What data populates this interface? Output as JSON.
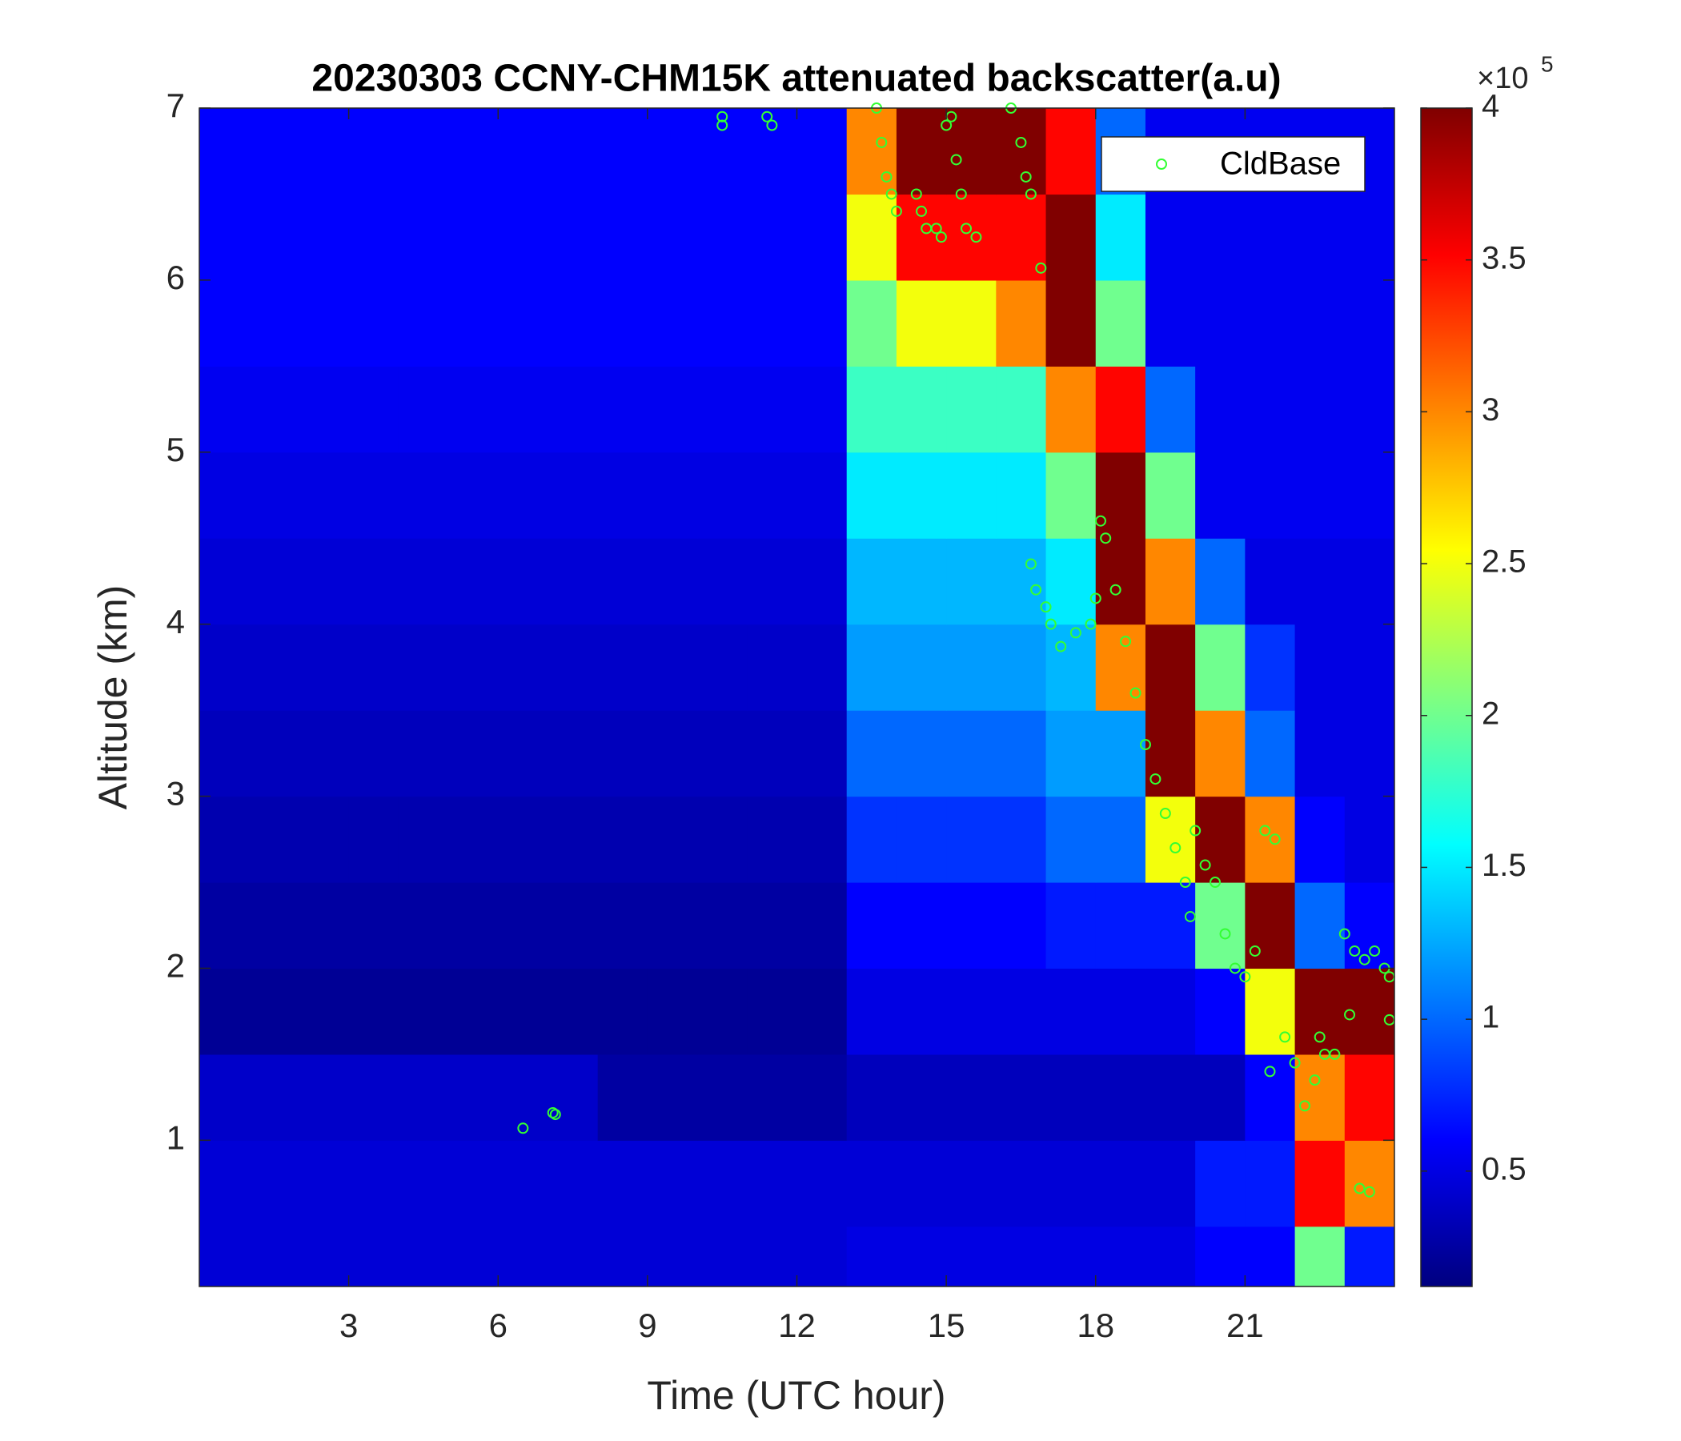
{
  "chart_data": {
    "type": "heatmap",
    "title": "20230303 CCNY-CHM15K attenuated backscatter(a.u)",
    "x_label": "Time (UTC hour)",
    "y_label": "Altitude (km)",
    "xlim": [
      0,
      24
    ],
    "ylim": [
      0.15,
      7
    ],
    "xticks": [
      3,
      6,
      9,
      12,
      15,
      18,
      21
    ],
    "yticks": [
      1,
      2,
      3,
      4,
      5,
      6,
      7
    ],
    "colormap": "jet",
    "clim": [
      0.12,
      4
    ],
    "cticks": [
      0.5,
      1,
      1.5,
      2,
      2.5,
      3,
      3.5,
      4
    ],
    "colorbar_multiplier": {
      "base": "×10",
      "exponent": "5"
    },
    "x_edges": [
      0,
      1,
      2,
      3,
      4,
      5,
      6,
      7,
      8,
      9,
      10,
      11,
      12,
      13,
      14,
      15,
      16,
      17,
      18,
      19,
      20,
      21,
      22,
      23,
      24
    ],
    "y_edges": [
      0.15,
      0.5,
      1,
      1.5,
      2,
      2.5,
      3,
      3.5,
      4,
      4.5,
      5,
      5.5,
      6,
      6.5,
      7
    ],
    "z": [
      [
        0.45,
        0.45,
        0.45,
        0.45,
        0.45,
        0.45,
        0.45,
        0.45,
        0.45,
        0.45,
        0.45,
        0.45,
        0.45,
        0.5,
        0.5,
        0.5,
        0.5,
        0.5,
        0.5,
        0.5,
        0.6,
        0.6,
        2.0,
        0.7
      ],
      [
        0.45,
        0.45,
        0.45,
        0.45,
        0.45,
        0.45,
        0.45,
        0.45,
        0.45,
        0.45,
        0.45,
        0.45,
        0.45,
        0.45,
        0.45,
        0.45,
        0.45,
        0.45,
        0.45,
        0.45,
        0.7,
        0.7,
        3.5,
        3.0
      ],
      [
        0.4,
        0.4,
        0.4,
        0.4,
        0.4,
        0.4,
        0.4,
        0.4,
        0.25,
        0.25,
        0.25,
        0.25,
        0.25,
        0.35,
        0.35,
        0.35,
        0.35,
        0.35,
        0.35,
        0.35,
        0.35,
        0.6,
        3.0,
        3.5
      ],
      [
        0.2,
        0.2,
        0.2,
        0.2,
        0.2,
        0.2,
        0.2,
        0.2,
        0.2,
        0.2,
        0.2,
        0.2,
        0.2,
        0.5,
        0.5,
        0.5,
        0.5,
        0.5,
        0.5,
        0.5,
        0.6,
        2.5,
        4,
        4
      ],
      [
        0.25,
        0.25,
        0.25,
        0.25,
        0.25,
        0.25,
        0.25,
        0.25,
        0.25,
        0.25,
        0.25,
        0.25,
        0.25,
        0.6,
        0.6,
        0.6,
        0.6,
        0.7,
        0.7,
        0.7,
        2.0,
        4,
        1.0,
        0.6
      ],
      [
        0.3,
        0.3,
        0.3,
        0.3,
        0.3,
        0.3,
        0.3,
        0.3,
        0.3,
        0.3,
        0.3,
        0.3,
        0.3,
        0.8,
        0.8,
        0.8,
        0.8,
        1.0,
        1.0,
        2.5,
        4,
        3,
        0.6,
        0.5
      ],
      [
        0.35,
        0.35,
        0.35,
        0.35,
        0.35,
        0.35,
        0.35,
        0.35,
        0.35,
        0.35,
        0.35,
        0.35,
        0.35,
        1.0,
        1.0,
        1.0,
        1.0,
        1.2,
        1.2,
        4,
        3,
        1.0,
        0.5,
        0.5
      ],
      [
        0.4,
        0.4,
        0.4,
        0.4,
        0.4,
        0.4,
        0.4,
        0.4,
        0.4,
        0.4,
        0.4,
        0.4,
        0.4,
        1.2,
        1.2,
        1.2,
        1.2,
        1.3,
        3.0,
        4,
        2.0,
        0.8,
        0.5,
        0.5
      ],
      [
        0.45,
        0.45,
        0.45,
        0.45,
        0.45,
        0.45,
        0.45,
        0.45,
        0.45,
        0.45,
        0.45,
        0.45,
        0.45,
        1.3,
        1.3,
        1.3,
        1.3,
        1.5,
        4,
        3.0,
        1.0,
        0.5,
        0.5,
        0.5
      ],
      [
        0.5,
        0.5,
        0.5,
        0.5,
        0.5,
        0.5,
        0.5,
        0.5,
        0.5,
        0.5,
        0.5,
        0.5,
        0.5,
        1.5,
        1.5,
        1.5,
        1.5,
        2.0,
        4,
        2.0,
        0.55,
        0.55,
        0.55,
        0.55
      ],
      [
        0.55,
        0.55,
        0.55,
        0.55,
        0.55,
        0.55,
        0.55,
        0.55,
        0.55,
        0.55,
        0.55,
        0.55,
        0.55,
        1.8,
        1.8,
        1.8,
        1.8,
        3.0,
        3.5,
        1.0,
        0.55,
        0.55,
        0.55,
        0.55
      ],
      [
        0.6,
        0.6,
        0.6,
        0.6,
        0.6,
        0.6,
        0.6,
        0.6,
        0.6,
        0.6,
        0.6,
        0.6,
        0.6,
        2.0,
        2.5,
        2.5,
        3.0,
        4,
        2.0,
        0.55,
        0.55,
        0.55,
        0.55,
        0.55
      ],
      [
        0.6,
        0.6,
        0.6,
        0.6,
        0.6,
        0.6,
        0.6,
        0.6,
        0.6,
        0.6,
        0.6,
        0.6,
        0.6,
        2.5,
        3.5,
        3.5,
        3.5,
        4,
        1.5,
        0.55,
        0.55,
        0.55,
        0.55,
        0.55
      ],
      [
        0.6,
        0.6,
        0.6,
        0.6,
        0.6,
        0.6,
        0.6,
        0.6,
        0.6,
        0.6,
        0.6,
        0.6,
        0.6,
        3.0,
        4,
        4,
        4,
        3.5,
        1.0,
        0.55,
        0.55,
        0.55,
        0.55,
        0.55
      ]
    ],
    "legend": "northeast",
    "series": [
      {
        "name": "CldBase",
        "color": "#33ff33",
        "x": [
          6.5,
          7.1,
          7.15,
          10.5,
          10.5,
          11.4,
          11.5,
          13.6,
          13.7,
          13.8,
          13.9,
          14.0,
          14.4,
          14.5,
          14.6,
          14.8,
          14.9,
          15.0,
          15.1,
          15.2,
          15.3,
          15.4,
          15.6,
          16.3,
          16.5,
          16.6,
          16.7,
          16.9,
          16.7,
          16.8,
          17.0,
          17.1,
          17.3,
          17.6,
          17.9,
          18.0,
          18.1,
          18.2,
          18.4,
          18.6,
          18.8,
          19.0,
          19.2,
          19.4,
          19.6,
          19.8,
          20.0,
          20.2,
          20.4,
          20.6,
          20.8,
          21.0,
          21.2,
          21.4,
          21.6,
          21.8,
          22.0,
          22.2,
          22.4,
          22.6,
          22.8,
          23.0,
          23.2,
          23.4,
          23.6,
          23.8,
          23.9,
          23.3,
          23.5,
          23.9,
          22.5,
          19.9,
          21.5,
          23.1
        ],
        "y": [
          1.07,
          1.16,
          1.15,
          6.95,
          6.9,
          6.95,
          6.9,
          7.0,
          6.8,
          6.6,
          6.5,
          6.4,
          6.5,
          6.4,
          6.3,
          6.3,
          6.25,
          6.9,
          6.95,
          6.7,
          6.5,
          6.3,
          6.25,
          7.0,
          6.8,
          6.6,
          6.5,
          6.07,
          4.35,
          4.2,
          4.1,
          4.0,
          3.87,
          3.95,
          4.0,
          4.15,
          4.6,
          4.5,
          4.2,
          3.9,
          3.6,
          3.3,
          3.1,
          2.9,
          2.7,
          2.5,
          2.8,
          2.6,
          2.5,
          2.2,
          2.0,
          1.95,
          2.1,
          2.8,
          2.75,
          1.6,
          1.45,
          1.2,
          1.35,
          1.5,
          1.5,
          2.2,
          2.1,
          2.05,
          2.1,
          2.0,
          1.95,
          0.72,
          0.7,
          1.7,
          1.6,
          2.3,
          1.4,
          1.73
        ]
      }
    ]
  }
}
